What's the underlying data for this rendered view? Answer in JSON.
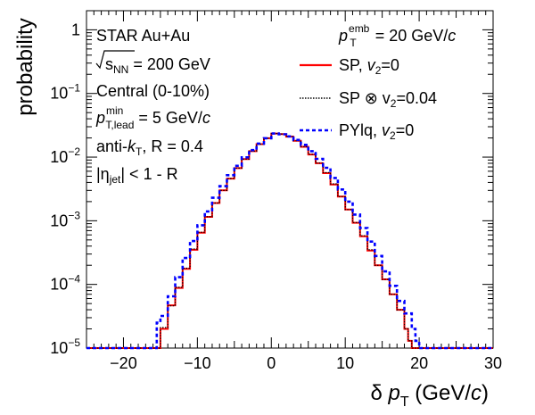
{
  "chart_data": {
    "type": "line",
    "xlabel": "δ p_T (GeV/c)",
    "ylabel": "probability",
    "xlim": [
      -25,
      30
    ],
    "ylim_log10": [
      -5,
      0.3
    ],
    "y_scale": "log",
    "legend_position": "top-right",
    "x_ticks": [
      {
        "value": -20,
        "label": "−20"
      },
      {
        "value": -10,
        "label": "−10"
      },
      {
        "value": 0,
        "label": "0"
      },
      {
        "value": 10,
        "label": "10"
      },
      {
        "value": 20,
        "label": "20"
      },
      {
        "value": 30,
        "label": "30"
      }
    ],
    "y_ticks": [
      {
        "exp": 0,
        "label_base": "1",
        "label_exp": ""
      },
      {
        "exp": -1,
        "label_base": "10",
        "label_exp": "−1"
      },
      {
        "exp": -2,
        "label_base": "10",
        "label_exp": "−2"
      },
      {
        "exp": -3,
        "label_base": "10",
        "label_exp": "−3"
      },
      {
        "exp": -4,
        "label_base": "10",
        "label_exp": "−4"
      },
      {
        "exp": -5,
        "label_base": "10",
        "label_exp": "−5"
      }
    ],
    "annotations": [
      "STAR Au+Au",
      "√s_NN = 200 GeV",
      "Central (0-10%)",
      "p_T,lead^min = 5 GeV/c",
      "anti-k_T, R = 0.4",
      "|η_jet| < 1 - R"
    ],
    "legend_header": "p_T^emb = 20 GeV/c",
    "series": [
      {
        "name": "SP, v2=0",
        "color": "#ff0000",
        "style": "solid",
        "x": [
          -25,
          -15.5,
          -15,
          -14,
          -13,
          -12,
          -11,
          -10,
          -9,
          -8,
          -7,
          -6,
          -5,
          -4,
          -3,
          -2,
          -1,
          0,
          1,
          2,
          3,
          4,
          5,
          6,
          7,
          8,
          9,
          10,
          11,
          12,
          13,
          14,
          15,
          16,
          17,
          18,
          18.5,
          19,
          30
        ],
        "y": [
          1e-05,
          1e-05,
          2e-05,
          4.7e-05,
          8.8e-05,
          0.000175,
          0.00035,
          0.00065,
          0.00115,
          0.0019,
          0.003,
          0.0046,
          0.0067,
          0.0093,
          0.0124,
          0.016,
          0.0198,
          0.0235,
          0.023,
          0.021,
          0.018,
          0.0145,
          0.011,
          0.008,
          0.0056,
          0.0037,
          0.0024,
          0.0015,
          0.00093,
          0.00057,
          0.00034,
          0.0002,
          0.00012,
          7e-05,
          4e-05,
          2e-05,
          1.3e-05,
          1e-05,
          1e-05
        ]
      },
      {
        "name": "SP ⊗ v2=0.04",
        "color": "#000000",
        "style": "dotted",
        "x": [
          -25,
          -15.5,
          -15,
          -14,
          -13,
          -12,
          -11,
          -10,
          -9,
          -8,
          -7,
          -6,
          -5,
          -4,
          -3,
          -2,
          -1,
          0,
          1,
          2,
          3,
          4,
          5,
          6,
          7,
          8,
          9,
          10,
          11,
          12,
          13,
          14,
          15,
          16,
          17,
          18,
          18.5,
          19,
          30
        ],
        "y": [
          1e-05,
          1e-05,
          2.1e-05,
          4.6e-05,
          9e-05,
          0.00018,
          0.00036,
          0.00066,
          0.00116,
          0.0019,
          0.003,
          0.0046,
          0.0067,
          0.0093,
          0.0124,
          0.016,
          0.0198,
          0.0235,
          0.0231,
          0.0211,
          0.0181,
          0.0146,
          0.0111,
          0.0081,
          0.0057,
          0.0038,
          0.0024,
          0.0015,
          0.00094,
          0.00058,
          0.00035,
          0.0002,
          0.00012,
          7e-05,
          4e-05,
          2e-05,
          1.3e-05,
          1e-05,
          1e-05
        ]
      },
      {
        "name": "PYlq, v2=0",
        "color": "#0000ff",
        "style": "dashed",
        "x": [
          -25,
          -16,
          -15.5,
          -15,
          -14,
          -13,
          -12,
          -11,
          -10,
          -9,
          -8,
          -7,
          -6,
          -5,
          -4,
          -3,
          -2,
          -1,
          0,
          1,
          2,
          3,
          4,
          5,
          6,
          7,
          8,
          9,
          10,
          11,
          12,
          13,
          14,
          15,
          16,
          17,
          18,
          19,
          19.5,
          20,
          30
        ],
        "y": [
          1e-05,
          1e-05,
          2.5e-05,
          3.2e-05,
          6.5e-05,
          0.00013,
          0.00026,
          0.00048,
          0.00085,
          0.0014,
          0.0023,
          0.0035,
          0.0052,
          0.0073,
          0.0099,
          0.0129,
          0.0163,
          0.0198,
          0.0235,
          0.0228,
          0.0212,
          0.0186,
          0.0156,
          0.0124,
          0.0094,
          0.0068,
          0.0047,
          0.0031,
          0.002,
          0.00125,
          0.00077,
          0.00047,
          0.00028,
          0.00016,
          9.5e-05,
          5.5e-05,
          3.5e-05,
          2e-05,
          1.3e-05,
          1e-05,
          1e-05
        ]
      }
    ]
  }
}
